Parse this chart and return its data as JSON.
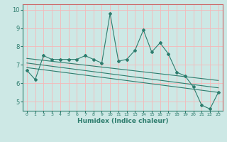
{
  "title": "",
  "xlabel": "Humidex (Indice chaleur)",
  "ylabel": "",
  "background_color": "#cde8e5",
  "grid_color": "#f5b8b8",
  "line_color": "#2e7d6e",
  "spine_color_tb": "#cc6666",
  "xlim": [
    -0.5,
    23.5
  ],
  "ylim": [
    4.5,
    10.3
  ],
  "xticks": [
    0,
    1,
    2,
    3,
    4,
    5,
    6,
    7,
    8,
    9,
    10,
    11,
    12,
    13,
    14,
    15,
    16,
    17,
    18,
    19,
    20,
    21,
    22,
    23
  ],
  "yticks": [
    5,
    6,
    7,
    8,
    9,
    10
  ],
  "data_x": [
    0,
    1,
    2,
    3,
    4,
    5,
    6,
    7,
    8,
    9,
    10,
    11,
    12,
    13,
    14,
    15,
    16,
    17,
    18,
    19,
    20,
    21,
    22,
    23
  ],
  "data_y": [
    6.7,
    6.2,
    7.5,
    7.3,
    7.3,
    7.3,
    7.3,
    7.5,
    7.3,
    7.1,
    9.8,
    7.2,
    7.3,
    7.8,
    8.9,
    7.7,
    8.2,
    7.6,
    6.6,
    6.4,
    5.8,
    4.8,
    4.6,
    5.5
  ],
  "trend1_x": [
    0,
    23
  ],
  "trend1_y": [
    7.35,
    6.15
  ],
  "trend2_x": [
    0,
    23
  ],
  "trend2_y": [
    6.85,
    5.5
  ],
  "trend3_x": [
    0,
    23
  ],
  "trend3_y": [
    7.1,
    5.75
  ]
}
